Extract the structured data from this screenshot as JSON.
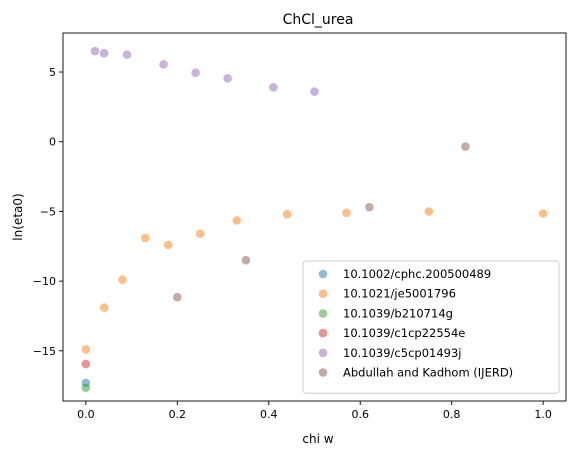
{
  "chart_data": {
    "type": "scatter",
    "title": "ChCl_urea",
    "xlabel": "chi w",
    "ylabel": "ln(eta0)",
    "xlim": [
      -0.05,
      1.05
    ],
    "ylim": [
      -18.6,
      7.8
    ],
    "xticks": [
      0.0,
      0.2,
      0.4,
      0.6,
      0.8,
      1.0
    ],
    "xtick_labels": [
      "0.0",
      "0.2",
      "0.4",
      "0.6",
      "0.8",
      "1.0"
    ],
    "yticks": [
      -15,
      -10,
      -5,
      0,
      5
    ],
    "ytick_labels": [
      "−15",
      "−10",
      "−5",
      "0",
      "5"
    ],
    "grid": false,
    "legend_position": "lower-right",
    "series": [
      {
        "name": "10.1002/cphc.200500489",
        "color": "#1f77b4",
        "points": [
          [
            0.0,
            -17.3
          ]
        ]
      },
      {
        "name": "10.1021/je5001796",
        "color": "#ff7f0e",
        "points": [
          [
            0.0,
            -14.9
          ],
          [
            0.04,
            -11.9
          ],
          [
            0.08,
            -9.9
          ],
          [
            0.13,
            -6.9
          ],
          [
            0.18,
            -7.4
          ],
          [
            0.25,
            -6.6
          ],
          [
            0.33,
            -5.65
          ],
          [
            0.44,
            -5.2
          ],
          [
            0.57,
            -5.1
          ],
          [
            0.75,
            -5.0
          ],
          [
            1.0,
            -5.15
          ]
        ]
      },
      {
        "name": "10.1039/b210714g",
        "color": "#2ca02c",
        "points": [
          [
            0.0,
            -17.65
          ]
        ]
      },
      {
        "name": "10.1039/c1cp22554e",
        "color": "#d62728",
        "points": [
          [
            0.0,
            -15.95
          ]
        ]
      },
      {
        "name": "10.1039/c5cp01493j",
        "color": "#9467bd",
        "points": [
          [
            0.02,
            6.5
          ],
          [
            0.04,
            6.35
          ],
          [
            0.09,
            6.25
          ],
          [
            0.17,
            5.55
          ],
          [
            0.24,
            4.95
          ],
          [
            0.31,
            4.55
          ],
          [
            0.41,
            3.9
          ],
          [
            0.5,
            3.6
          ]
        ]
      },
      {
        "name": "Abdullah and Kadhom (IJERD)",
        "color": "#8c564b",
        "points": [
          [
            0.2,
            -11.15
          ],
          [
            0.35,
            -8.5
          ],
          [
            0.62,
            -4.7
          ],
          [
            0.83,
            -0.35
          ]
        ]
      }
    ]
  }
}
